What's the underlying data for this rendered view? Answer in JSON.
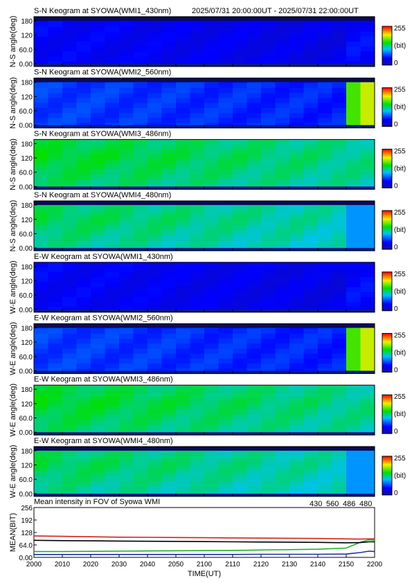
{
  "header": {
    "time_range": "2025/07/31 20:00:00UT - 2025/07/31 22:00:00UT"
  },
  "colorbar": {
    "max_label": "255",
    "unit_label": "(bit)",
    "min_label": "0"
  },
  "keograms": [
    {
      "title": "S-N Keogram at SYOWA(WMI1_430nm)",
      "ylabel": "N-S angle(deg)",
      "ticks": [
        "180",
        "120",
        "60.0",
        "0.00"
      ],
      "base": 0.17,
      "top_band": "dark",
      "edge": "none",
      "edge_strength": 0.1
    },
    {
      "title": "S-N Keogram at SYOWA(WMI2_560nm)",
      "ylabel": "N-S angle(deg)",
      "ticks": [
        "180",
        "120",
        "60.0",
        "0.00"
      ],
      "base": 0.25,
      "top_band": "dark",
      "edge": "green",
      "edge_strength": 0.55
    },
    {
      "title": "S-N Keogram at SYOWA(WMI3_486nm)",
      "ylabel": "N-S angle(deg)",
      "ticks": [
        "180",
        "120",
        "60.0",
        "0.00"
      ],
      "base": 0.5,
      "top_band": "none",
      "edge": "none",
      "edge_strength": 0.0
    },
    {
      "title": "S-N Keogram at SYOWA(WMI4_480nm)",
      "ylabel": "N-S angle(deg)",
      "ticks": [
        "180",
        "120",
        "60.0",
        "0.00"
      ],
      "base": 0.47,
      "top_band": "dark",
      "edge": "blue",
      "edge_strength": 0.1
    },
    {
      "title": "E-W Keogram at SYOWA(WMI1_430nm)",
      "ylabel": "W-E angle(deg)",
      "ticks": [
        "180",
        "120",
        "60.0",
        "0.00"
      ],
      "base": 0.17,
      "top_band": "none",
      "edge": "none",
      "edge_strength": 0.1
    },
    {
      "title": "E-W Keogram at SYOWA(WMI2_560nm)",
      "ylabel": "W-E angle(deg)",
      "ticks": [
        "180",
        "120",
        "60.0",
        "0.00"
      ],
      "base": 0.25,
      "top_band": "dark",
      "edge": "green",
      "edge_strength": 0.55
    },
    {
      "title": "E-W Keogram at SYOWA(WMI3_486nm)",
      "ylabel": "W-E angle(deg)",
      "ticks": [
        "180",
        "120",
        "60.0",
        "0.00"
      ],
      "base": 0.5,
      "top_band": "none",
      "edge": "none",
      "edge_strength": 0.0
    },
    {
      "title": "E-W Keogram at SYOWA(WMI4_480nm)",
      "ylabel": "W-E angle(deg)",
      "ticks": [
        "180",
        "120",
        "60.0",
        "0.00"
      ],
      "base": 0.47,
      "top_band": "dark",
      "edge": "blue",
      "edge_strength": 0.1
    }
  ],
  "chart_data": {
    "type": "line",
    "title": "Mean intensity in FOV of Syowa WMI",
    "xlabel": "TIME(UT)",
    "ylabel": "MEAN(BIT)",
    "xlim": [
      2000,
      2200
    ],
    "ylim": [
      0,
      256
    ],
    "x_tick_labels": [
      "2000",
      "2010",
      "2020",
      "2030",
      "2040",
      "2050",
      "2100",
      "2110",
      "2120",
      "2130",
      "2140",
      "2150",
      "2200"
    ],
    "y_tick_labels": [
      "0.00",
      "64.0",
      "128",
      "192",
      "256"
    ],
    "x": [
      0,
      10,
      20,
      30,
      40,
      50,
      60,
      70,
      80,
      90,
      100,
      110,
      115,
      118,
      120
    ],
    "series": [
      {
        "name": "430",
        "color": "#1c2fa3",
        "values": [
          15,
          15,
          15,
          15,
          15,
          15,
          15,
          15,
          16,
          16,
          16,
          17,
          25,
          32,
          30
        ]
      },
      {
        "name": "560",
        "color": "#22b022",
        "values": [
          30,
          30,
          31,
          32,
          33,
          34,
          35,
          36,
          38,
          40,
          42,
          48,
          78,
          90,
          88
        ]
      },
      {
        "name": "486",
        "color": "#d42020",
        "values": [
          110,
          108,
          106,
          104,
          103,
          102,
          101,
          100,
          99,
          98,
          97,
          95,
          94,
          95,
          95
        ]
      },
      {
        "name": "480",
        "color": "#000000",
        "values": [
          88,
          86,
          85,
          84,
          83,
          82,
          81,
          80,
          79,
          78,
          77,
          75,
          76,
          80,
          80
        ]
      }
    ]
  }
}
